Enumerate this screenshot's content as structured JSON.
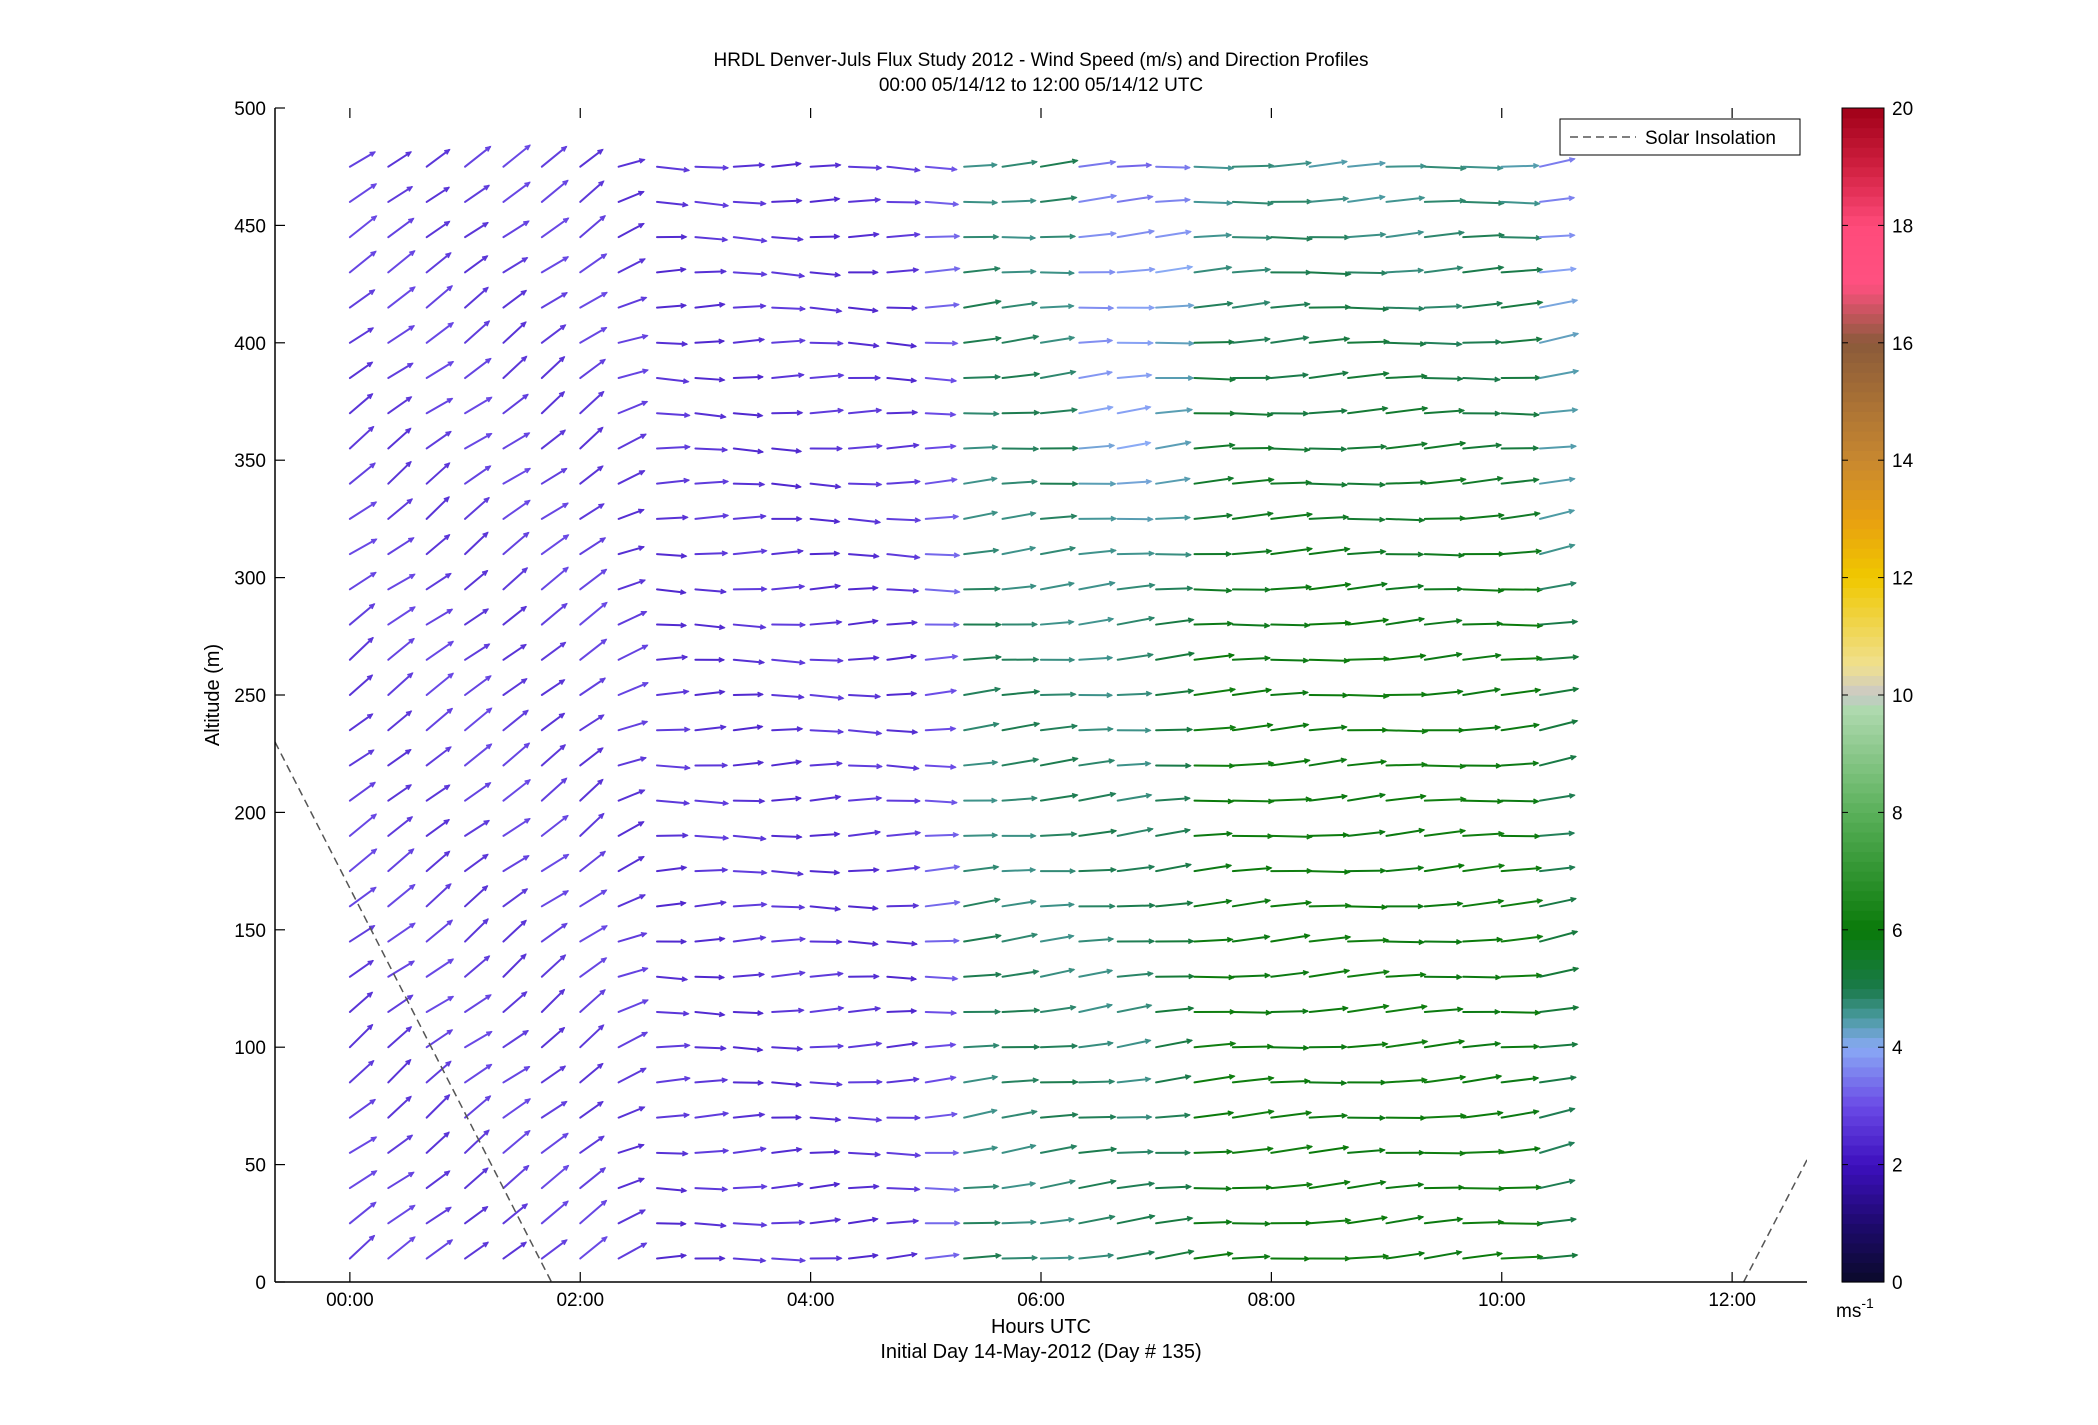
{
  "chart_data": {
    "type": "quiver",
    "title": "HRDL Denver-Juls Flux Study 2012 - Wind Speed (m/s) and Direction Profiles",
    "subtitle": "00:00 05/14/12 to 12:00 05/14/12  UTC",
    "xlabel": "Hours UTC",
    "xlabel2": "Initial Day 14-May-2012 (Day # 135)",
    "ylabel": "Altitude (m)",
    "xlim_hours": [
      -0.65,
      12.65
    ],
    "ylim": [
      0,
      500
    ],
    "x_ticks": [
      {
        "value": 0,
        "label": "00:00"
      },
      {
        "value": 2,
        "label": "02:00"
      },
      {
        "value": 4,
        "label": "04:00"
      },
      {
        "value": 6,
        "label": "06:00"
      },
      {
        "value": 8,
        "label": "08:00"
      },
      {
        "value": 10,
        "label": "10:00"
      },
      {
        "value": 12,
        "label": "12:00"
      }
    ],
    "y_ticks": [
      {
        "value": 0,
        "label": "0"
      },
      {
        "value": 50,
        "label": "50"
      },
      {
        "value": 100,
        "label": "100"
      },
      {
        "value": 150,
        "label": "150"
      },
      {
        "value": 200,
        "label": "200"
      },
      {
        "value": 250,
        "label": "250"
      },
      {
        "value": 300,
        "label": "300"
      },
      {
        "value": 350,
        "label": "350"
      },
      {
        "value": 400,
        "label": "400"
      },
      {
        "value": 450,
        "label": "450"
      },
      {
        "value": 500,
        "label": "500"
      }
    ],
    "legend": {
      "position": "top-right",
      "entries": [
        {
          "name": "Solar Insolation",
          "style": "dashed",
          "color": "#555555"
        }
      ]
    },
    "colorbar": {
      "range": [
        0,
        20
      ],
      "unit_label": "ms",
      "unit_exponent": "-1",
      "ticks": [
        {
          "value": 0,
          "label": "0"
        },
        {
          "value": 2,
          "label": "2"
        },
        {
          "value": 4,
          "label": "4"
        },
        {
          "value": 6,
          "label": "6"
        },
        {
          "value": 8,
          "label": "8"
        },
        {
          "value": 10,
          "label": "10"
        },
        {
          "value": 12,
          "label": "12"
        },
        {
          "value": 14,
          "label": "14"
        },
        {
          "value": 16,
          "label": "16"
        },
        {
          "value": 18,
          "label": "18"
        },
        {
          "value": 20,
          "label": "20"
        }
      ],
      "stops": [
        {
          "v": 0,
          "c": "#0a0a2a"
        },
        {
          "v": 1,
          "c": "#1e0a6e"
        },
        {
          "v": 2,
          "c": "#3d0fbe"
        },
        {
          "v": 3,
          "c": "#6a4ae6"
        },
        {
          "v": 4,
          "c": "#8aaaf5"
        },
        {
          "v": 4.5,
          "c": "#4a9aa0"
        },
        {
          "v": 5,
          "c": "#1a7a4a"
        },
        {
          "v": 6,
          "c": "#0a7a0a"
        },
        {
          "v": 8,
          "c": "#5ab05a"
        },
        {
          "v": 9.8,
          "c": "#b0dab0"
        },
        {
          "v": 10,
          "c": "#c8c8c8"
        },
        {
          "v": 10.5,
          "c": "#f0e090"
        },
        {
          "v": 12,
          "c": "#f0c800"
        },
        {
          "v": 13,
          "c": "#e8a010"
        },
        {
          "v": 14,
          "c": "#c88830"
        },
        {
          "v": 16,
          "c": "#8a5a3a"
        },
        {
          "v": 17,
          "c": "#ff5080"
        },
        {
          "v": 18,
          "c": "#ff4a7a"
        },
        {
          "v": 19,
          "c": "#d02040"
        },
        {
          "v": 20,
          "c": "#a00018"
        }
      ]
    },
    "wind_field": {
      "time_start_hours": 0,
      "time_step_hours": 0.3333,
      "time_count": 32,
      "alt_start_m": 10,
      "alt_step_m": 15,
      "alt_count": 32,
      "direction_note": "arrows point toward flow direction; u>0 eastward, v>0 northward",
      "phases": [
        {
          "t0": 0.0,
          "t1": 2.4,
          "u": 2.4,
          "v": 1.9,
          "speed": 2.8
        },
        {
          "t0": 2.4,
          "t1": 5.2,
          "u": 3.0,
          "v": 0.1,
          "speed": 2.6
        },
        {
          "t0": 5.2,
          "t1": 7.2,
          "u": 3.4,
          "v": 0.4,
          "speed": 4.8
        },
        {
          "t0": 7.2,
          "t1": 10.4,
          "u": 3.8,
          "v": 0.3,
          "speed": 6.0
        },
        {
          "t0": 10.4,
          "t1": 12.0,
          "u": 3.2,
          "v": 1.2,
          "speed": 3.8
        }
      ]
    },
    "solar_insolation_segments": [
      {
        "x": [
          -0.65,
          1.75
        ],
        "y": [
          230,
          0
        ]
      },
      {
        "x": [
          12.1,
          12.65
        ],
        "y": [
          0,
          52
        ]
      }
    ]
  }
}
